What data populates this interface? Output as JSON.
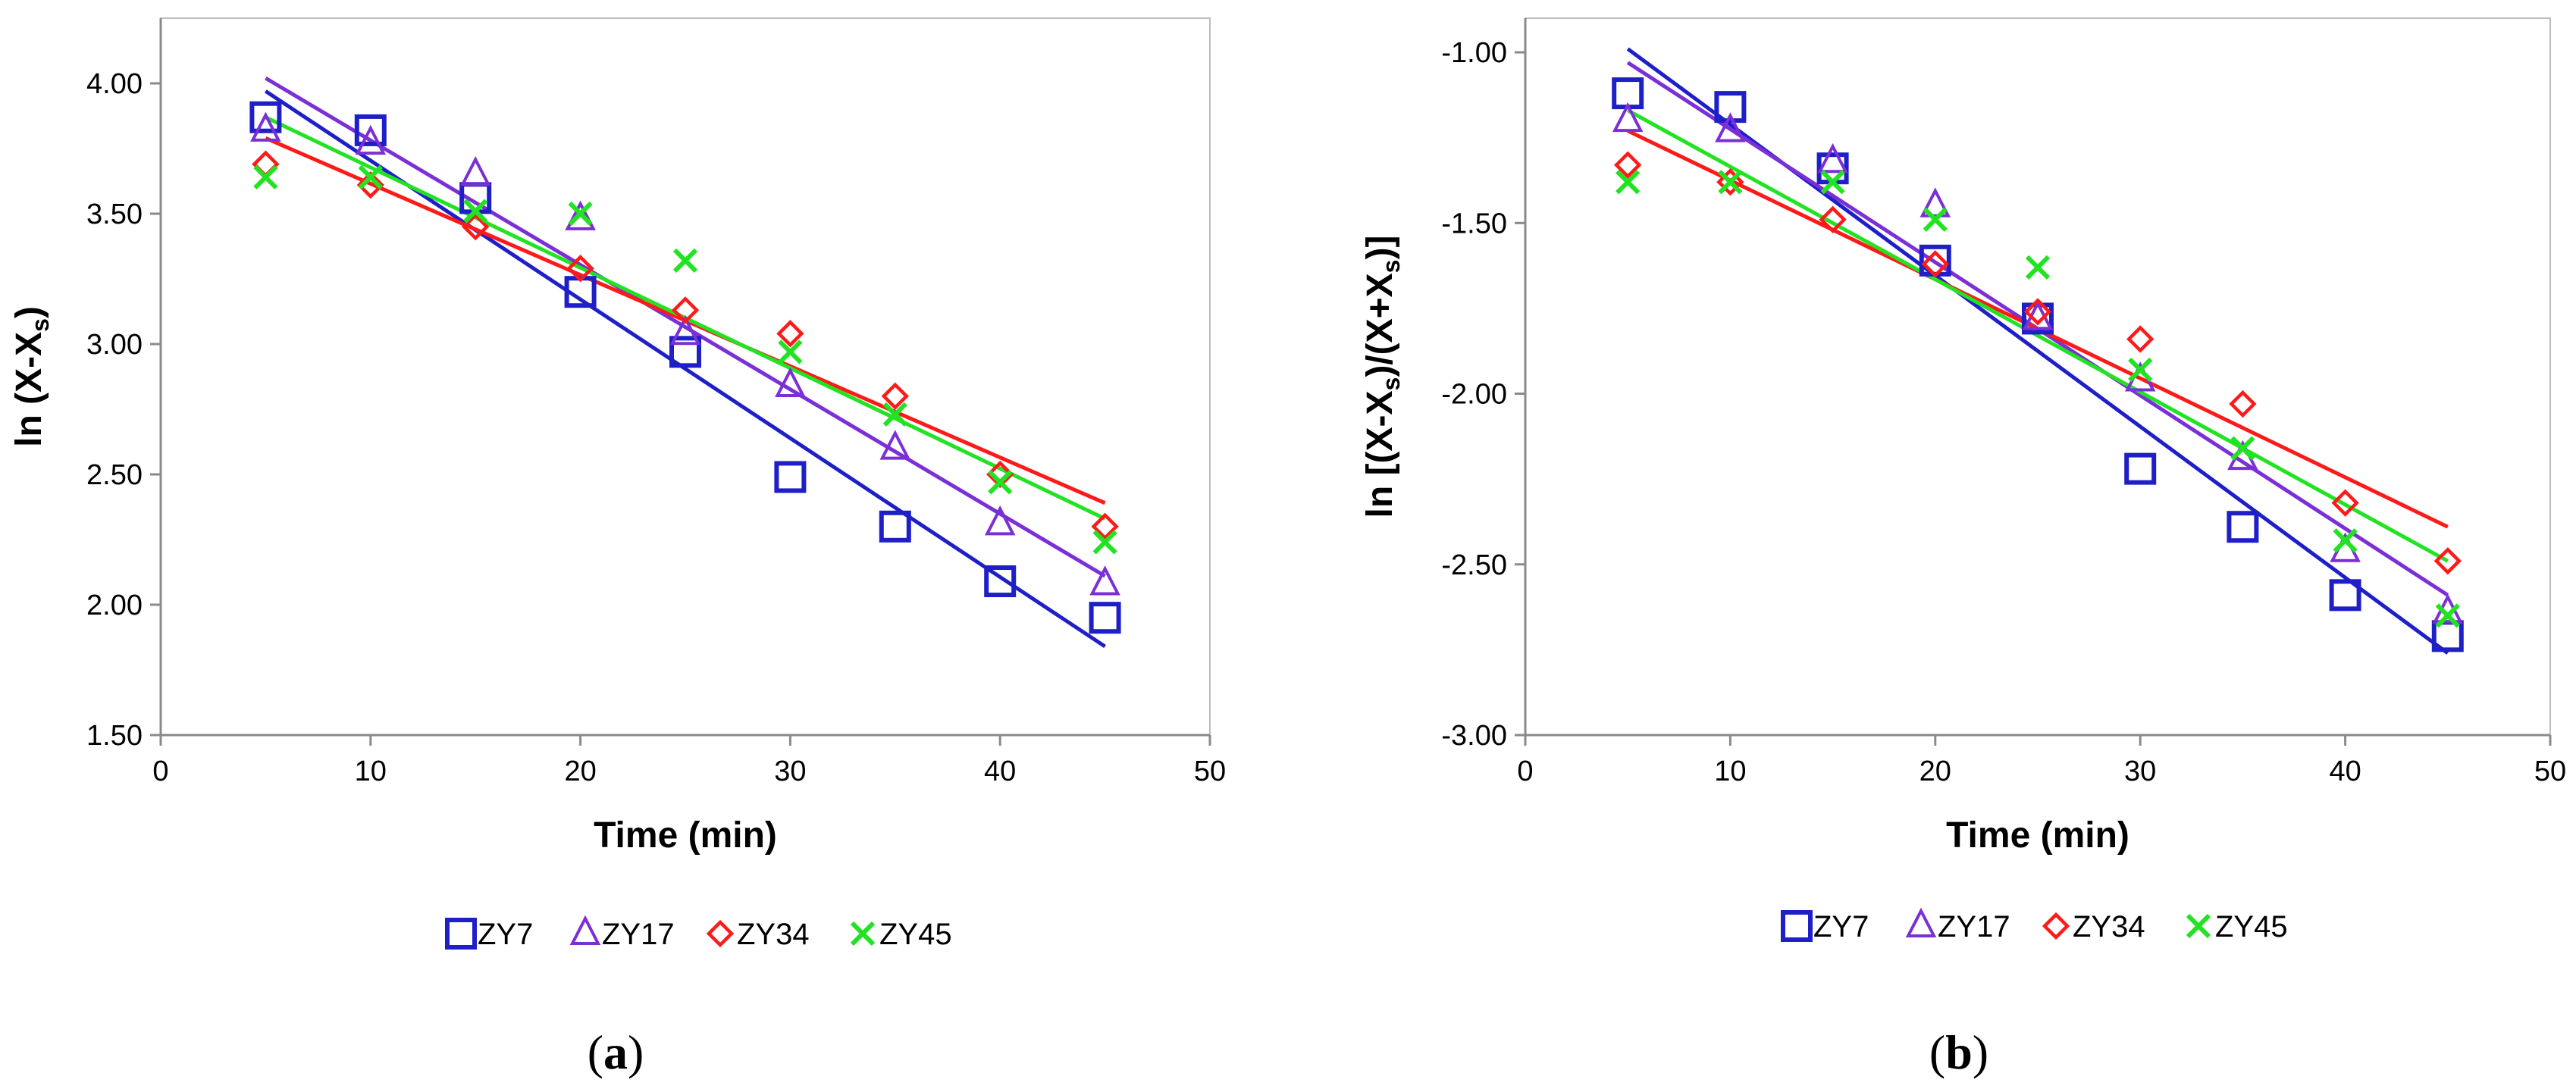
{
  "chart_data": [
    {
      "type": "scatter",
      "panel_label": "a",
      "xlabel": "Time (min)",
      "ylabel_main": "ln (X-X",
      "ylabel_sub": "s",
      "ylabel_close": ")",
      "xlim": [
        0,
        50
      ],
      "ylim": [
        1.5,
        4.25
      ],
      "xticks": [
        0,
        10,
        20,
        30,
        40,
        50
      ],
      "xtick_labels": [
        "0",
        "10",
        "20",
        "30",
        "40",
        "50"
      ],
      "yticks": [
        1.5,
        2.0,
        2.5,
        3.0,
        3.5,
        4.0
      ],
      "ytick_labels": [
        "1.50",
        "2.00",
        "2.50",
        "3.00",
        "3.50",
        "4.00"
      ],
      "grid": false,
      "legend_position": "bottom",
      "series": [
        {
          "name": "ZY7",
          "marker": "square",
          "color": "#1f1fc8",
          "x": [
            5,
            10,
            15,
            20,
            25,
            30,
            35,
            40,
            45
          ],
          "y": [
            3.87,
            3.82,
            3.56,
            3.2,
            2.97,
            2.49,
            2.3,
            2.09,
            1.95
          ],
          "fit_start": [
            5,
            3.97
          ],
          "fit_end": [
            45,
            1.84
          ]
        },
        {
          "name": "ZY17",
          "marker": "triangle",
          "color": "#7b2fd6",
          "x": [
            5,
            10,
            15,
            20,
            25,
            30,
            35,
            40,
            45
          ],
          "y": [
            3.82,
            3.77,
            3.65,
            3.48,
            3.04,
            2.84,
            2.6,
            2.31,
            2.08
          ],
          "fit_start": [
            5,
            4.02
          ],
          "fit_end": [
            45,
            2.11
          ]
        },
        {
          "name": "ZY34",
          "marker": "diamond",
          "color": "#ff1a1a",
          "x": [
            5,
            10,
            15,
            20,
            25,
            30,
            35,
            40,
            45
          ],
          "y": [
            3.69,
            3.61,
            3.45,
            3.29,
            3.13,
            3.04,
            2.8,
            2.5,
            2.3
          ],
          "fit_start": [
            5,
            3.79
          ],
          "fit_end": [
            45,
            2.39
          ]
        },
        {
          "name": "ZY45",
          "marker": "x",
          "color": "#22e322",
          "x": [
            5,
            10,
            15,
            20,
            25,
            30,
            35,
            40,
            45
          ],
          "y": [
            3.64,
            3.64,
            3.51,
            3.5,
            3.32,
            2.97,
            2.73,
            2.47,
            2.24
          ],
          "fit_start": [
            5,
            3.87
          ],
          "fit_end": [
            45,
            2.33
          ]
        }
      ]
    },
    {
      "type": "scatter",
      "panel_label": "b",
      "xlabel": "Time (min)",
      "ylabel_main": "ln [(X-X",
      "ylabel_sub": "s",
      "ylabel_mid": ")/(X+X",
      "ylabel_sub2": "s",
      "ylabel_close": ")]",
      "xlim": [
        0,
        50
      ],
      "ylim": [
        -3.0,
        -0.9
      ],
      "xticks": [
        0,
        10,
        20,
        30,
        40,
        50
      ],
      "xtick_labels": [
        "0",
        "10",
        "20",
        "30",
        "40",
        "50"
      ],
      "yticks": [
        -3.0,
        -2.5,
        -2.0,
        -1.5,
        -1.0
      ],
      "ytick_labels": [
        "-3.00",
        "-2.50",
        "-2.00",
        "-1.50",
        "-1.00"
      ],
      "grid": false,
      "legend_position": "bottom",
      "series": [
        {
          "name": "ZY7",
          "marker": "square",
          "color": "#1f1fc8",
          "x": [
            5,
            10,
            15,
            20,
            25,
            30,
            35,
            40,
            45
          ],
          "y": [
            -1.12,
            -1.16,
            -1.34,
            -1.61,
            -1.78,
            -2.22,
            -2.39,
            -2.59,
            -2.71
          ],
          "fit_start": [
            5,
            -0.99
          ],
          "fit_end": [
            45,
            -2.76
          ]
        },
        {
          "name": "ZY17",
          "marker": "triangle",
          "color": "#7b2fd6",
          "x": [
            5,
            10,
            15,
            20,
            25,
            30,
            35,
            40,
            45
          ],
          "y": [
            -1.2,
            -1.23,
            -1.32,
            -1.45,
            -1.78,
            -1.96,
            -2.19,
            -2.46,
            -2.64
          ],
          "fit_start": [
            5,
            -1.03
          ],
          "fit_end": [
            45,
            -2.59
          ]
        },
        {
          "name": "ZY34",
          "marker": "diamond",
          "color": "#ff1a1a",
          "x": [
            5,
            10,
            15,
            20,
            25,
            30,
            35,
            40,
            45
          ],
          "y": [
            -1.33,
            -1.38,
            -1.49,
            -1.62,
            -1.76,
            -1.84,
            -2.03,
            -2.32,
            -2.49
          ],
          "fit_start": [
            5,
            -1.23
          ],
          "fit_end": [
            45,
            -2.39
          ]
        },
        {
          "name": "ZY45",
          "marker": "x",
          "color": "#22e322",
          "x": [
            5,
            10,
            15,
            20,
            25,
            30,
            35,
            40,
            45
          ],
          "y": [
            -1.38,
            -1.38,
            -1.38,
            -1.49,
            -1.63,
            -1.93,
            -2.16,
            -2.43,
            -2.65
          ],
          "fit_start": [
            5,
            -1.17
          ],
          "fit_end": [
            45,
            -2.49
          ]
        }
      ]
    }
  ]
}
